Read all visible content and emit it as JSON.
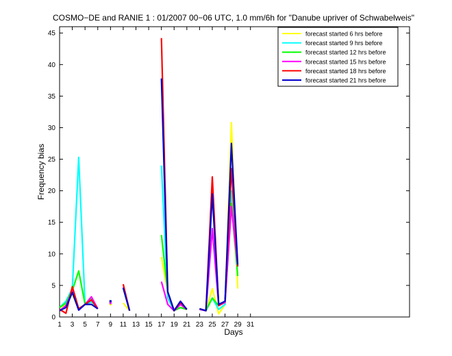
{
  "chart_data": {
    "type": "line",
    "title": "COSMO−DE and RANIE 1 : 01/2007 00−06 UTC, 1.0 mm/6h for \"Danube upriver of Schwabelweis\"",
    "xlabel": "Days",
    "ylabel": "Frequency bias",
    "xlim": [
      1,
      56
    ],
    "ylim": [
      0,
      46
    ],
    "xticks": [
      1,
      3,
      5,
      7,
      9,
      11,
      13,
      15,
      17,
      19,
      21,
      23,
      25,
      27,
      29,
      31
    ],
    "yticks": [
      0,
      5,
      10,
      15,
      20,
      25,
      30,
      35,
      40,
      45
    ],
    "legend_position": "top-right",
    "series": [
      {
        "name": "forecast started 6 hrs before",
        "color": "#ffff00",
        "values": [
          [
            1,
            1
          ],
          [
            2,
            2
          ],
          [
            3,
            3.6
          ],
          [
            4,
            1.2
          ],
          [
            5,
            2
          ],
          [
            6,
            2
          ],
          [
            7,
            1.3
          ],
          null,
          [
            9,
            2
          ],
          null,
          [
            11,
            2.2
          ],
          [
            12,
            1
          ],
          null,
          null,
          null,
          null,
          [
            17,
            9.5
          ],
          [
            18,
            4
          ],
          [
            19,
            1
          ],
          [
            20,
            1.5
          ],
          [
            21,
            1.2
          ],
          null,
          [
            23,
            1.3
          ],
          [
            24,
            1
          ],
          [
            25,
            4.5
          ],
          [
            26,
            0.5
          ],
          [
            27,
            2
          ],
          [
            28,
            30.8
          ],
          [
            29,
            4.5
          ]
        ]
      },
      {
        "name": "forecast started 9 hrs before",
        "color": "#00ffff",
        "values": [
          [
            1,
            1.5
          ],
          [
            2,
            2.5
          ],
          [
            3,
            4.5
          ],
          [
            4,
            25.3
          ],
          [
            5,
            2
          ],
          [
            6,
            2.4
          ],
          [
            7,
            1.3
          ],
          null,
          [
            9,
            2.5
          ],
          null,
          [
            11,
            4.6
          ],
          [
            12,
            1
          ],
          null,
          null,
          null,
          null,
          [
            17,
            24
          ],
          [
            18,
            3
          ],
          [
            19,
            1
          ],
          [
            20,
            2
          ],
          [
            21,
            1.2
          ],
          null,
          [
            23,
            1.2
          ],
          [
            24,
            1
          ],
          [
            25,
            3
          ],
          [
            26,
            1.2
          ],
          [
            27,
            2
          ],
          [
            28,
            20
          ],
          [
            29,
            8
          ]
        ]
      },
      {
        "name": "forecast started 12 hrs before",
        "color": "#00ff00",
        "values": [
          [
            1,
            1.5
          ],
          [
            2,
            2.2
          ],
          [
            3,
            4.2
          ],
          [
            4,
            7.3
          ],
          [
            5,
            2
          ],
          [
            6,
            2.8
          ],
          [
            7,
            1.3
          ],
          null,
          [
            9,
            2.2
          ],
          null,
          [
            11,
            4.6
          ],
          [
            12,
            1
          ],
          null,
          null,
          null,
          null,
          [
            17,
            13
          ],
          [
            18,
            4
          ],
          [
            19,
            1
          ],
          [
            20,
            1.5
          ],
          [
            21,
            1.2
          ],
          null,
          [
            23,
            1.2
          ],
          [
            24,
            1
          ],
          [
            25,
            3
          ],
          [
            26,
            1.8
          ],
          [
            27,
            2.3
          ],
          [
            28,
            18
          ],
          [
            29,
            6.5
          ]
        ]
      },
      {
        "name": "forecast started 15 hrs before",
        "color": "#ff00ff",
        "values": [
          [
            1,
            1
          ],
          [
            2,
            1.8
          ],
          [
            3,
            4.1
          ],
          [
            4,
            1.1
          ],
          [
            5,
            2
          ],
          [
            6,
            3.2
          ],
          [
            7,
            1.3
          ],
          null,
          [
            9,
            2.2
          ],
          null,
          [
            11,
            4.7
          ],
          [
            12,
            1
          ],
          null,
          null,
          null,
          null,
          [
            17,
            5.6
          ],
          [
            18,
            2
          ],
          [
            19,
            1
          ],
          [
            20,
            2
          ],
          [
            21,
            1.2
          ],
          null,
          [
            23,
            1.2
          ],
          [
            24,
            1
          ],
          [
            25,
            14
          ],
          [
            26,
            1.8
          ],
          [
            27,
            2.3
          ],
          [
            28,
            17.5
          ],
          [
            29,
            8
          ]
        ]
      },
      {
        "name": "forecast started 18 hrs before",
        "color": "#ff0000",
        "values": [
          [
            1,
            1.2
          ],
          [
            2,
            0.6
          ],
          [
            3,
            4.8
          ],
          [
            4,
            1.3
          ],
          [
            5,
            2
          ],
          [
            6,
            2.7
          ],
          [
            7,
            1.3
          ],
          null,
          [
            9,
            2.5
          ],
          null,
          [
            11,
            5.2
          ],
          [
            12,
            1
          ],
          null,
          null,
          null,
          null,
          [
            17,
            44.2
          ],
          [
            18,
            4
          ],
          [
            19,
            1
          ],
          [
            20,
            2.3
          ],
          [
            21,
            1.2
          ],
          null,
          [
            23,
            1.3
          ],
          [
            24,
            1
          ],
          [
            25,
            22.2
          ],
          [
            26,
            1.8
          ],
          [
            27,
            2.5
          ],
          [
            28,
            23.5
          ],
          [
            29,
            8
          ]
        ]
      },
      {
        "name": "forecast started 21 hrs before",
        "color": "#0000cc",
        "values": [
          [
            1,
            1
          ],
          [
            2,
            1.5
          ],
          [
            3,
            3.9
          ],
          [
            4,
            1.1
          ],
          [
            5,
            2
          ],
          [
            6,
            2
          ],
          [
            7,
            1.3
          ],
          null,
          [
            9,
            2.5
          ],
          null,
          [
            11,
            4.6
          ],
          [
            12,
            1
          ],
          null,
          null,
          null,
          null,
          [
            17,
            37.8
          ],
          [
            18,
            4
          ],
          [
            19,
            1
          ],
          [
            20,
            2.5
          ],
          [
            21,
            1.2
          ],
          null,
          [
            23,
            1.3
          ],
          [
            24,
            1
          ],
          [
            25,
            19.5
          ],
          [
            26,
            2
          ],
          [
            27,
            2.5
          ],
          [
            28,
            27.5
          ],
          [
            29,
            8.3
          ]
        ]
      }
    ]
  }
}
